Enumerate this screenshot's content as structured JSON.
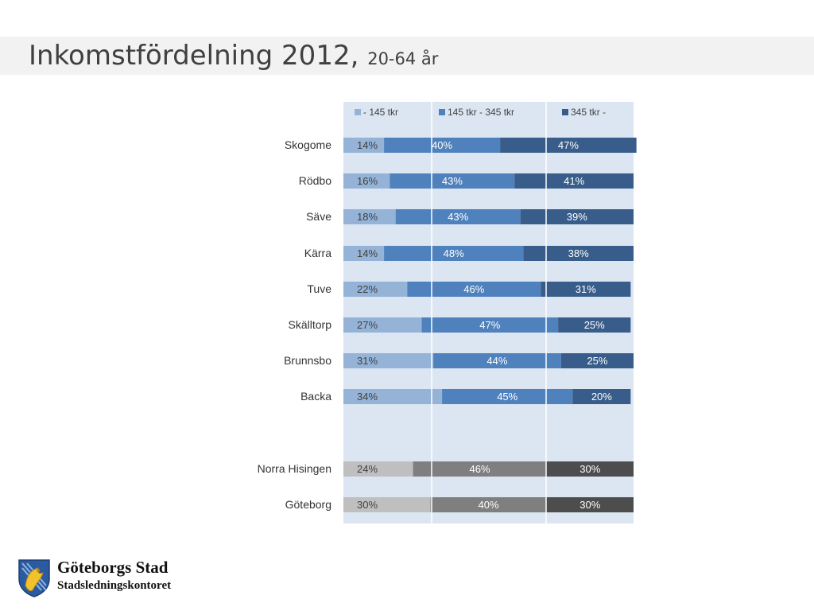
{
  "header": {
    "title_main": "Inkomstfördelning 2012,",
    "title_sub": "20-64 år"
  },
  "logo": {
    "name": "Göteborgs Stad",
    "unit": "Stadsledningskontoret"
  },
  "colors": {
    "segments_blue": [
      "#95b3d7",
      "#4f81bd",
      "#385d8a"
    ],
    "segments_gray": [
      "#bfbfbf",
      "#7f7f7f",
      "#4d4d4d"
    ],
    "plot_bg": "#dce6f2"
  },
  "chart_data": {
    "type": "bar",
    "orientation": "horizontal",
    "stacked": true,
    "legend": [
      "- 145 tkr",
      "145 tkr - 345 tkr",
      "345 tkr -"
    ],
    "legend_placement": "top",
    "categories": [
      "Skogome",
      "Rödbo",
      "Säve",
      "Kärra",
      "Tuve",
      "Skälltorp",
      "Brunnsbo",
      "Backa",
      "Norra Hisingen",
      "Göteborg"
    ],
    "series": [
      {
        "name": "- 145 tkr",
        "values": [
          14,
          16,
          18,
          14,
          22,
          27,
          31,
          34,
          24,
          30
        ]
      },
      {
        "name": "145 tkr - 345 tkr",
        "values": [
          40,
          43,
          43,
          48,
          46,
          47,
          44,
          45,
          46,
          40
        ]
      },
      {
        "name": "345 tkr -",
        "values": [
          47,
          41,
          39,
          38,
          31,
          25,
          25,
          20,
          30,
          30
        ]
      }
    ],
    "value_suffix": "%",
    "gray_categories": [
      "Norra Hisingen",
      "Göteborg"
    ]
  }
}
